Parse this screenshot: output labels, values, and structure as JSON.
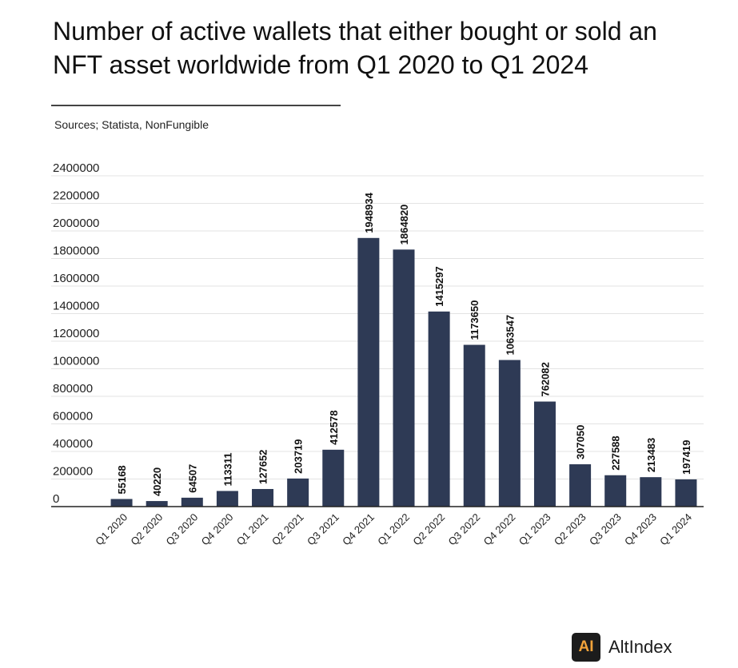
{
  "chart_data": {
    "type": "bar",
    "title": "Number of active wallets that either bought or sold an NFT asset worldwide from Q1 2020 to Q1 2024",
    "source": "Sources; Statista, NonFungible",
    "categories": [
      "Q1 2020",
      "Q2 2020",
      "Q3 2020",
      "Q4 2020",
      "Q1 2021",
      "Q2 2021",
      "Q3 2021",
      "Q4 2021",
      "Q1 2022",
      "Q2 2022",
      "Q3 2022",
      "Q4 2022",
      "Q1 2023",
      "Q2 2023",
      "Q3 2023",
      "Q4 2023",
      "Q1 2024"
    ],
    "values": [
      55168,
      40220,
      64507,
      113311,
      127652,
      203719,
      412578,
      1948934,
      1864820,
      1415297,
      1173650,
      1063547,
      762082,
      307050,
      227588,
      213483,
      197419
    ],
    "ylim": [
      0,
      2400000
    ],
    "yticks": [
      0,
      200000,
      400000,
      600000,
      800000,
      1000000,
      1200000,
      1400000,
      1600000,
      1800000,
      2000000,
      2200000,
      2400000
    ],
    "xlabel": "",
    "ylabel": "",
    "grid": true,
    "bar_color": "#2e3a55"
  },
  "brand": {
    "icon_text": "AI",
    "name": "AltIndex",
    "icon_color": "#f2a33a"
  }
}
